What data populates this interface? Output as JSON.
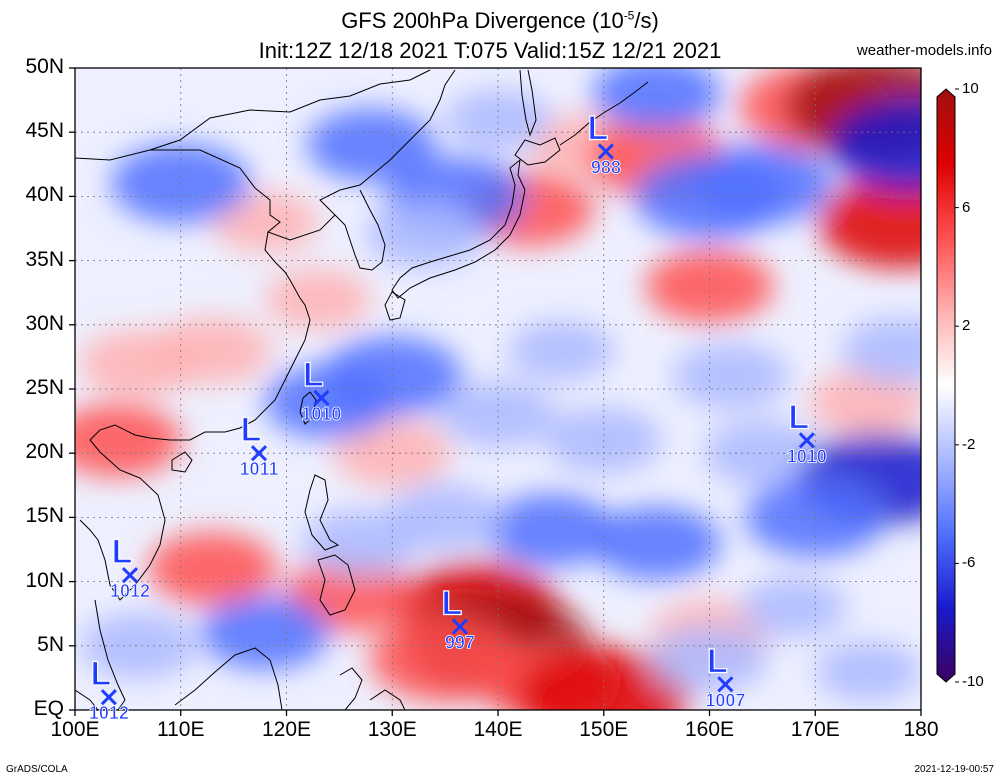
{
  "title": {
    "line1_pre": "GFS 200hPa Divergence (10",
    "line1_exp": "-5",
    "line1_post": "/s)",
    "line2": "Init:12Z 12/18 2021 T:075 Valid:15Z 12/21 2021"
  },
  "source": "weather-models.info",
  "footer": {
    "left": "GrADS/COLA",
    "right": "2021-12-19-00:57"
  },
  "map": {
    "lon_range": [
      100,
      180
    ],
    "lat_range": [
      0,
      50
    ],
    "lon_labels": [
      "100E",
      "110E",
      "120E",
      "130E",
      "140E",
      "150E",
      "160E",
      "170E",
      "180"
    ],
    "lat_labels": [
      "50N",
      "45N",
      "40N",
      "35N",
      "30N",
      "25N",
      "20N",
      "15N",
      "10N",
      "5N",
      "EQ"
    ],
    "grid_lines": "dotted"
  },
  "colorbar": {
    "range": [
      -10,
      10
    ],
    "labels": [
      "10",
      "6",
      "2",
      "-2",
      "-6",
      "-10"
    ],
    "colors": [
      "#3a0060",
      "#1a1acc",
      "#5070ff",
      "#aab8ff",
      "#ffffff",
      "#ffb0b0",
      "#ff5050",
      "#dd0000",
      "#a01010"
    ]
  },
  "lows": [
    {
      "label": "L",
      "pressure": "988",
      "lon": 150.2,
      "lat": 43.5
    },
    {
      "label": "L",
      "pressure": "1010",
      "lon": 123.3,
      "lat": 24.3
    },
    {
      "label": "L",
      "pressure": "1011",
      "lon": 117.4,
      "lat": 20.0
    },
    {
      "label": "L",
      "pressure": "1010",
      "lon": 169.2,
      "lat": 21.0
    },
    {
      "label": "L",
      "pressure": "1012",
      "lon": 105.2,
      "lat": 10.5
    },
    {
      "label": "L",
      "pressure": "997",
      "lon": 136.4,
      "lat": 6.5
    },
    {
      "label": "L",
      "pressure": "1007",
      "lon": 161.5,
      "lat": 2.0
    },
    {
      "label": "L",
      "pressure": "1012",
      "lon": 103.2,
      "lat": 1.0
    }
  ],
  "divergence_patches": [
    {
      "lon": 113,
      "lat": 28,
      "value": 3
    },
    {
      "lon": 106,
      "lat": 27,
      "value": 3
    },
    {
      "lon": 118,
      "lat": 38,
      "value": 2
    },
    {
      "lon": 123,
      "lat": 32,
      "value": 2
    },
    {
      "lon": 143,
      "lat": 39,
      "value": 4
    },
    {
      "lon": 148,
      "lat": 44,
      "value": 2
    },
    {
      "lon": 155,
      "lat": 43,
      "value": 5
    },
    {
      "lon": 170,
      "lat": 47,
      "value": 6
    },
    {
      "lon": 176,
      "lat": 47,
      "value": 9
    },
    {
      "lon": 178,
      "lat": 38,
      "value": 7
    },
    {
      "lon": 160,
      "lat": 33,
      "value": 4
    },
    {
      "lon": 175,
      "lat": 24,
      "value": 3
    },
    {
      "lon": 138,
      "lat": 8,
      "value": 7
    },
    {
      "lon": 140,
      "lat": 5,
      "value": 9
    },
    {
      "lon": 135,
      "lat": 4,
      "value": 6
    },
    {
      "lon": 145,
      "lat": 2,
      "value": 5
    },
    {
      "lon": 150,
      "lat": 1,
      "value": 8
    },
    {
      "lon": 126,
      "lat": 9,
      "value": 4
    },
    {
      "lon": 113,
      "lat": 11,
      "value": 4
    },
    {
      "lon": 104,
      "lat": 21,
      "value": 4
    },
    {
      "lon": 160,
      "lat": 6,
      "value": 3
    },
    {
      "lon": 130,
      "lat": 20,
      "value": 3
    },
    {
      "lon": 140,
      "lat": 46,
      "value": -2
    },
    {
      "lon": 136,
      "lat": 40,
      "value": -5
    },
    {
      "lon": 133,
      "lat": 37,
      "value": -3
    },
    {
      "lon": 110,
      "lat": 41,
      "value": -5
    },
    {
      "lon": 128,
      "lat": 44,
      "value": -4
    },
    {
      "lon": 160,
      "lat": 40,
      "value": -6
    },
    {
      "lon": 165,
      "lat": 41,
      "value": -5
    },
    {
      "lon": 155,
      "lat": 48,
      "value": -4
    },
    {
      "lon": 179,
      "lat": 44,
      "value": -7
    },
    {
      "lon": 178,
      "lat": 28,
      "value": -3
    },
    {
      "lon": 130,
      "lat": 26,
      "value": -5
    },
    {
      "lon": 140,
      "lat": 23,
      "value": -3
    },
    {
      "lon": 150,
      "lat": 21,
      "value": -3
    },
    {
      "lon": 165,
      "lat": 20,
      "value": -3
    },
    {
      "lon": 176,
      "lat": 18,
      "value": -7
    },
    {
      "lon": 170,
      "lat": 15,
      "value": -5
    },
    {
      "lon": 155,
      "lat": 13,
      "value": -4
    },
    {
      "lon": 145,
      "lat": 14,
      "value": -4
    },
    {
      "lon": 135,
      "lat": 15,
      "value": -3
    },
    {
      "lon": 124,
      "lat": 24,
      "value": -4
    },
    {
      "lon": 127,
      "lat": 13,
      "value": -3
    },
    {
      "lon": 118,
      "lat": 6,
      "value": -4
    },
    {
      "lon": 106,
      "lat": 5,
      "value": -3
    },
    {
      "lon": 160,
      "lat": 4,
      "value": -3
    },
    {
      "lon": 168,
      "lat": 8,
      "value": -2
    },
    {
      "lon": 175,
      "lat": 3,
      "value": -2
    },
    {
      "lon": 162,
      "lat": 26,
      "value": -3
    },
    {
      "lon": 146,
      "lat": 28,
      "value": -2
    }
  ]
}
